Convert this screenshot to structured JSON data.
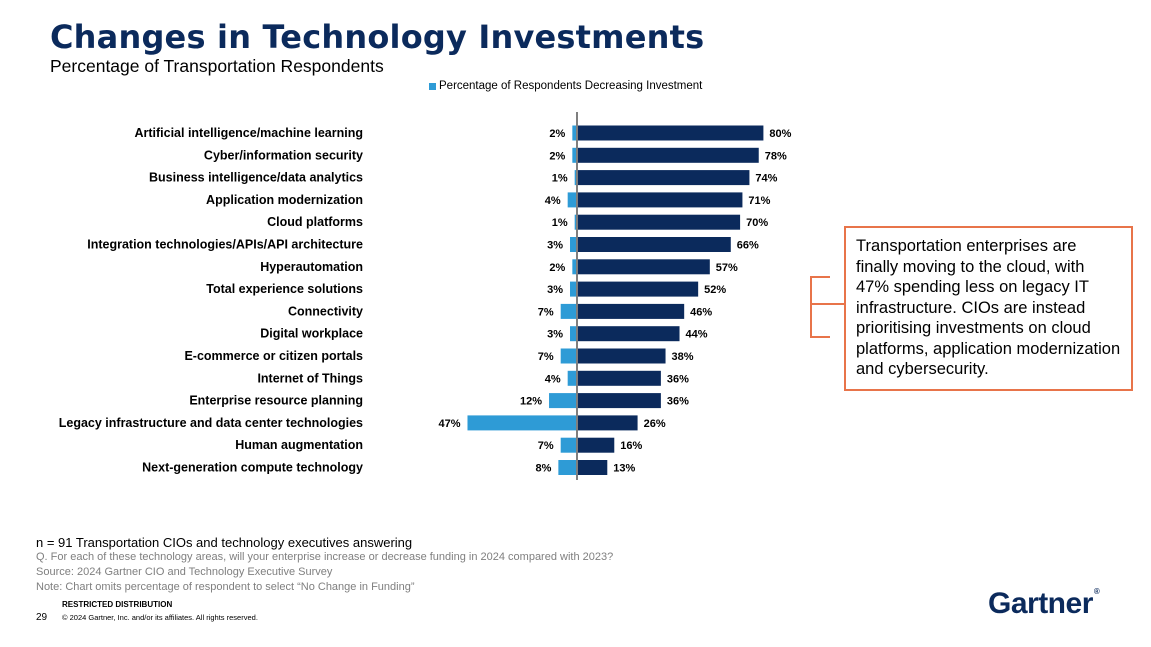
{
  "title": "Changes in Technology Investments",
  "subtitle": "Percentage of Transportation Respondents",
  "callout": "Transportation enterprises are finally moving to the cloud, with 47% spending less on legacy IT infrastructure. CIOs are instead prioritising investments on cloud platforms, application modernization and cybersecurity.",
  "footer": {
    "n_note": "n = 91 Transportation CIOs and technology executives answering",
    "question": "Q. For each of these technology areas, will your enterprise increase or decrease funding in 2024 compared with 2023?",
    "source": "Source: 2024 Gartner CIO and Technology Executive Survey",
    "note": "Note: Chart omits percentage of respondent to select “No Change in Funding”",
    "restricted": "RESTRICTED DISTRIBUTION",
    "page_number": "29",
    "copyright": "© 2024 Gartner, Inc. and/or its affiliates. All rights reserved.",
    "logo": "Gartner"
  },
  "colors": {
    "increase": "#0b2a5c",
    "decrease": "#2e9bd6",
    "accent": "#e8744a",
    "title": "#0b2a5c"
  },
  "chart_data": {
    "type": "bar",
    "orientation": "diverging-horizontal",
    "categories": [
      "Artificial intelligence/machine learning",
      "Cyber/information security",
      "Business intelligence/data analytics",
      "Application modernization",
      "Cloud platforms",
      "Integration technologies/APIs/API architecture",
      "Hyperautomation",
      "Total experience solutions",
      "Connectivity",
      "Digital workplace",
      "E-commerce or citizen portals",
      "Internet of Things",
      "Enterprise resource planning",
      "Legacy infrastructure and data center technologies",
      "Human augmentation",
      "Next-generation compute technology"
    ],
    "series": [
      {
        "name": "Percentage of Respondents Decreasing Investment",
        "values": [
          2,
          2,
          1,
          4,
          1,
          3,
          2,
          3,
          7,
          3,
          7,
          4,
          12,
          47,
          7,
          8
        ]
      },
      {
        "values": [
          80,
          78,
          74,
          71,
          70,
          66,
          57,
          52,
          46,
          44,
          38,
          36,
          36,
          26,
          16,
          13
        ]
      }
    ],
    "legend": "top"
  }
}
